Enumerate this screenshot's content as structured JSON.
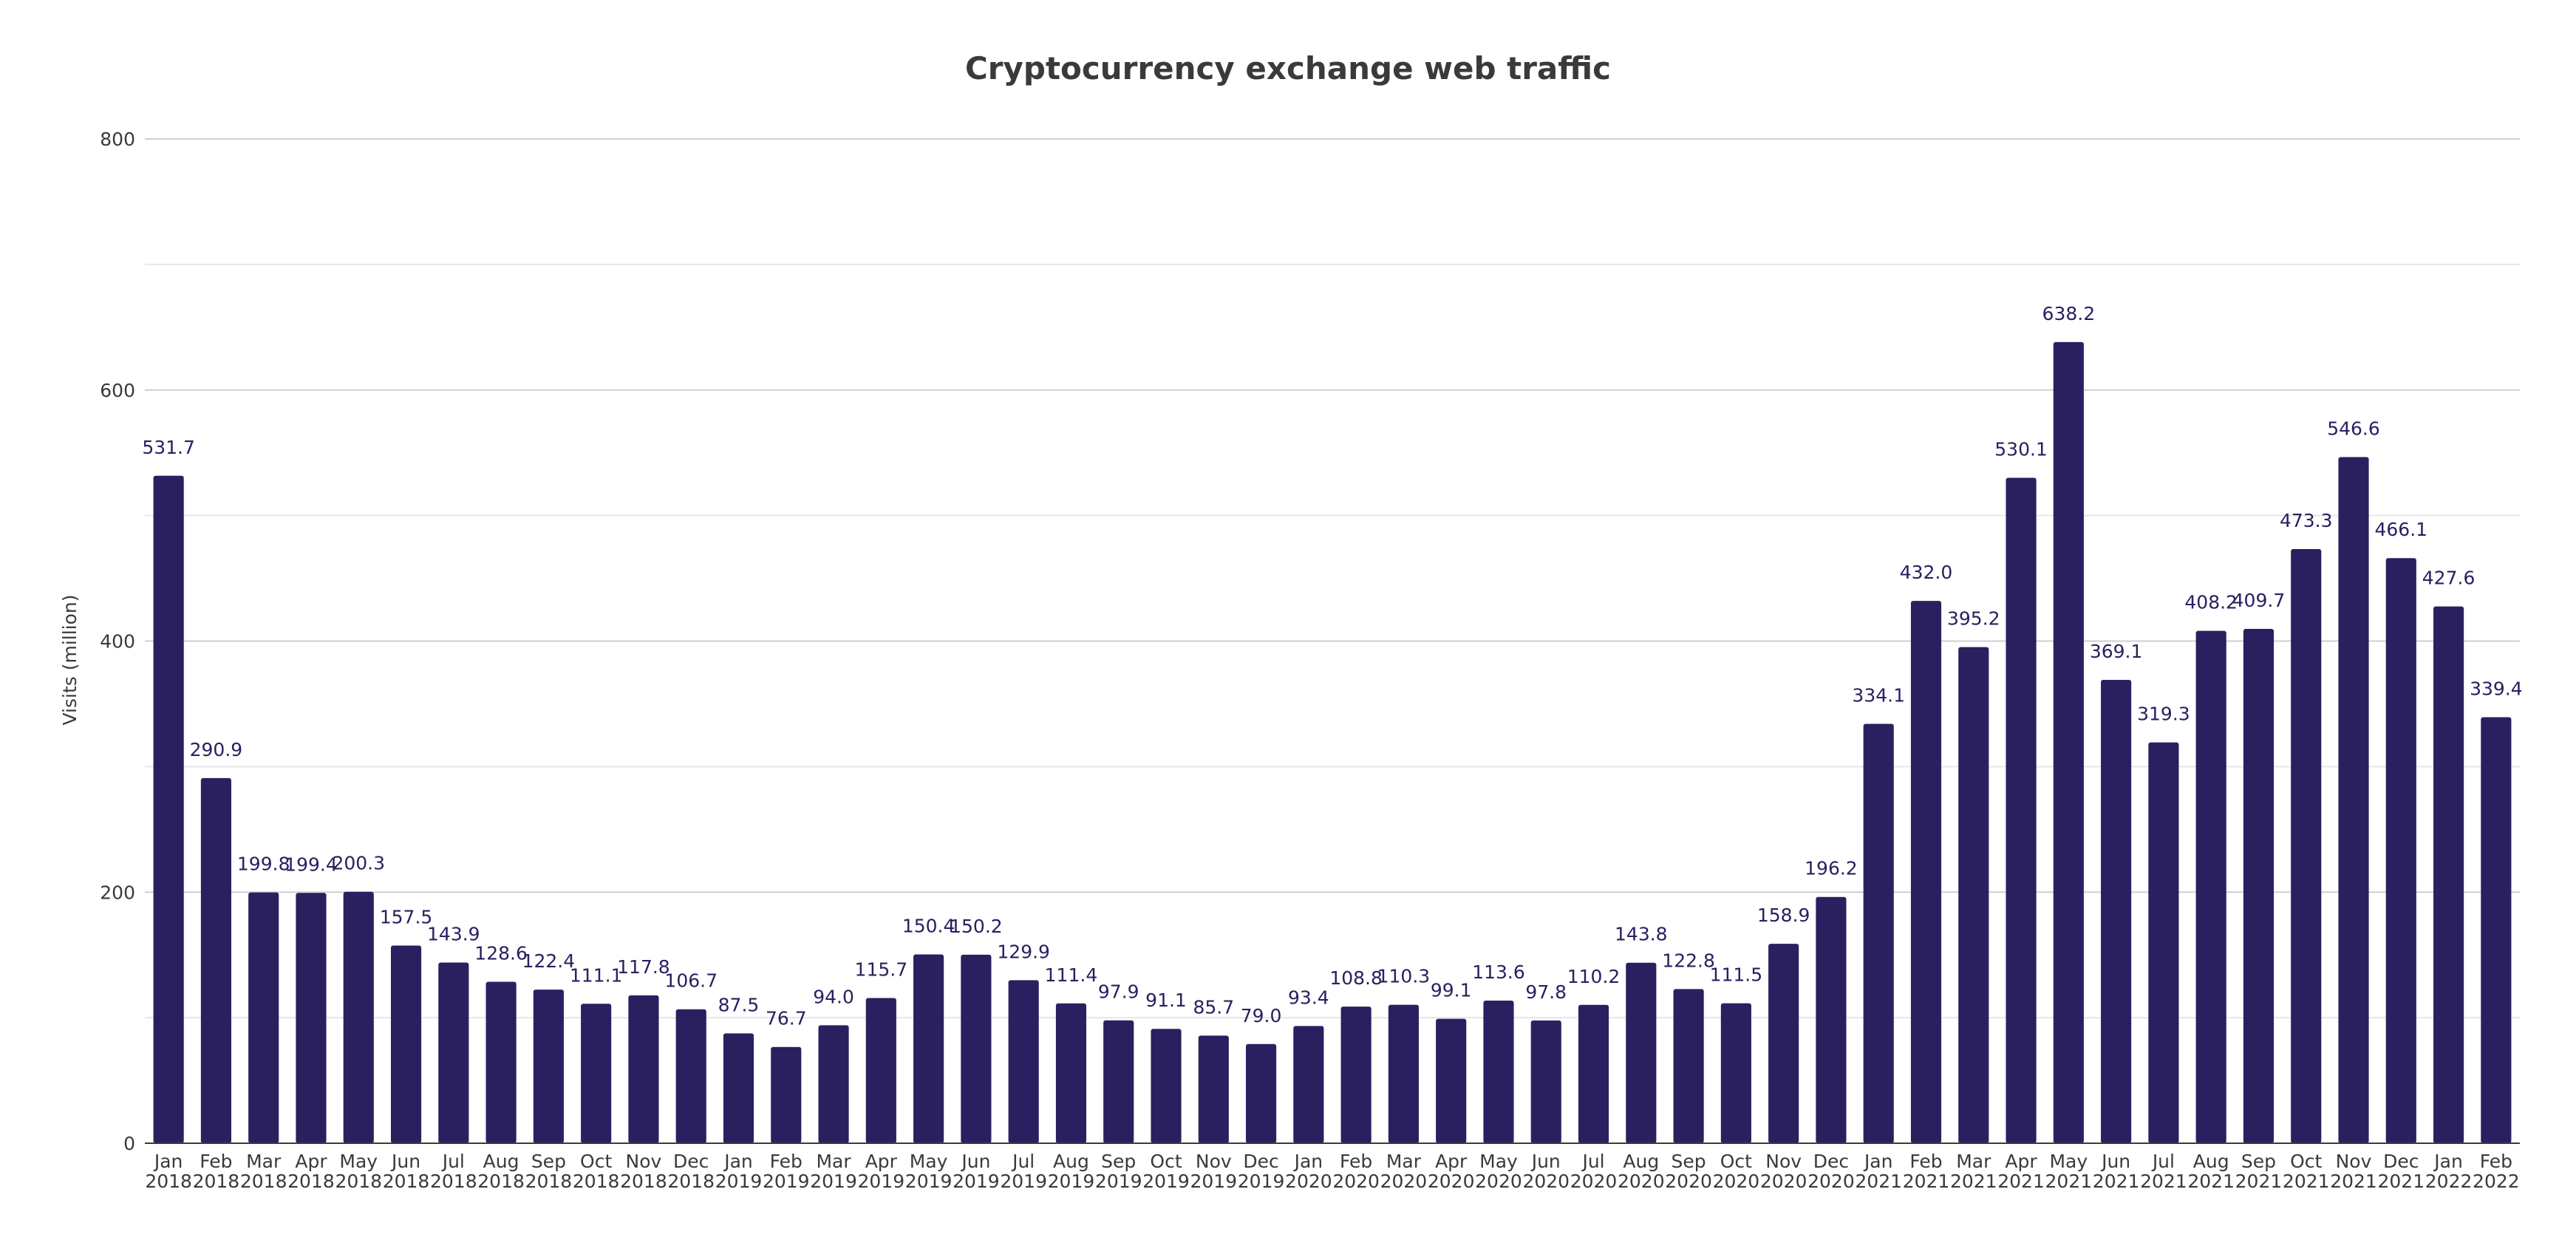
{
  "chart_data": {
    "type": "bar",
    "title": "Cryptocurrency exchange web traffic",
    "ylabel": "Visits (million)",
    "xlabel": "",
    "ylim": [
      0,
      800
    ],
    "y_ticks": [
      0,
      200,
      400,
      600,
      800
    ],
    "grid": true,
    "bar_color": "#2a2060",
    "categories": [
      [
        "Jan",
        "2018"
      ],
      [
        "Feb",
        "2018"
      ],
      [
        "Mar",
        "2018"
      ],
      [
        "Apr",
        "2018"
      ],
      [
        "May",
        "2018"
      ],
      [
        "Jun",
        "2018"
      ],
      [
        "Jul",
        "2018"
      ],
      [
        "Aug",
        "2018"
      ],
      [
        "Sep",
        "2018"
      ],
      [
        "Oct",
        "2018"
      ],
      [
        "Nov",
        "2018"
      ],
      [
        "Dec",
        "2018"
      ],
      [
        "Jan",
        "2019"
      ],
      [
        "Feb",
        "2019"
      ],
      [
        "Mar",
        "2019"
      ],
      [
        "Apr",
        "2019"
      ],
      [
        "May",
        "2019"
      ],
      [
        "Jun",
        "2019"
      ],
      [
        "Jul",
        "2019"
      ],
      [
        "Aug",
        "2019"
      ],
      [
        "Sep",
        "2019"
      ],
      [
        "Oct",
        "2019"
      ],
      [
        "Nov",
        "2019"
      ],
      [
        "Dec",
        "2019"
      ],
      [
        "Jan",
        "2020"
      ],
      [
        "Feb",
        "2020"
      ],
      [
        "Mar",
        "2020"
      ],
      [
        "Apr",
        "2020"
      ],
      [
        "May",
        "2020"
      ],
      [
        "Jun",
        "2020"
      ],
      [
        "Jul",
        "2020"
      ],
      [
        "Aug",
        "2020"
      ],
      [
        "Sep",
        "2020"
      ],
      [
        "Oct",
        "2020"
      ],
      [
        "Nov",
        "2020"
      ],
      [
        "Dec",
        "2020"
      ],
      [
        "Jan",
        "2021"
      ],
      [
        "Feb",
        "2021"
      ],
      [
        "Mar",
        "2021"
      ],
      [
        "Apr",
        "2021"
      ],
      [
        "May",
        "2021"
      ],
      [
        "Jun",
        "2021"
      ],
      [
        "Jul",
        "2021"
      ],
      [
        "Aug",
        "2021"
      ],
      [
        "Sep",
        "2021"
      ],
      [
        "Oct",
        "2021"
      ],
      [
        "Nov",
        "2021"
      ],
      [
        "Dec",
        "2021"
      ],
      [
        "Jan",
        "2022"
      ],
      [
        "Feb",
        "2022"
      ]
    ],
    "values": [
      531.7,
      290.9,
      199.8,
      199.4,
      200.3,
      157.5,
      143.9,
      128.6,
      122.4,
      111.1,
      117.8,
      106.7,
      87.5,
      76.7,
      94.0,
      115.7,
      150.4,
      150.2,
      129.9,
      111.4,
      97.9,
      91.1,
      85.7,
      79.0,
      93.4,
      108.8,
      110.3,
      99.1,
      113.6,
      97.8,
      110.2,
      143.8,
      122.8,
      111.5,
      158.9,
      196.2,
      334.1,
      432.0,
      395.2,
      530.1,
      638.2,
      369.1,
      319.3,
      408.2,
      409.7,
      473.3,
      546.6,
      466.1,
      427.6,
      339.4
    ]
  }
}
